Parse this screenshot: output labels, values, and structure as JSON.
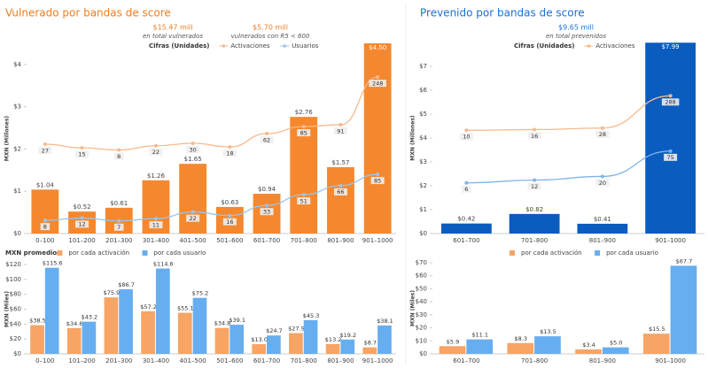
{
  "chart_data": [
    {
      "type": "bar",
      "title": "Vulnerado por bandas de score",
      "title_color": "#ef7d22",
      "annotations": [
        "$15.47 mill",
        "en total vulnerados",
        "$5.70 mill",
        "vulnerados con R5 < 600"
      ],
      "legend_title": "Cifras (Unidades)",
      "y_label": "MXN (Millones)",
      "categories": [
        "0–100",
        "101–200",
        "201–300",
        "301–400",
        "401–500",
        "501–600",
        "601–700",
        "701–800",
        "801–900",
        "901–1000"
      ],
      "values": [
        1.04,
        0.52,
        0.61,
        1.26,
        1.65,
        0.63,
        0.94,
        2.76,
        1.57,
        4.5
      ],
      "value_labels": [
        "$1.04",
        "$0.52",
        "$0.61",
        "$1.26",
        "$1.65",
        "$0.63",
        "$0.94",
        "$2.76",
        "$1.57",
        "$4.50"
      ],
      "color": "#f5882e",
      "ylim": [
        0,
        4.5
      ],
      "yticks": [
        {
          "value": 0,
          "label": "$0"
        },
        {
          "value": 1,
          "label": "$1"
        },
        {
          "value": 2,
          "label": "$2"
        },
        {
          "value": 3,
          "label": "$3"
        },
        {
          "value": 4,
          "label": "$4"
        }
      ],
      "series": [
        {
          "name": "Activaciones",
          "color": "#f7b98c",
          "values": [
            27,
            15,
            8,
            22,
            30,
            18,
            62,
            85,
            91,
            248
          ],
          "axis": "y2"
        },
        {
          "name": "Usuarios",
          "color": "#9cc4ea",
          "values": [
            8,
            12,
            7,
            11,
            22,
            16,
            33,
            51,
            66,
            85
          ],
          "axis": "y3"
        }
      ],
      "y2lim": [
        -267,
        359
      ],
      "y3lim": [
        -14,
        304
      ]
    },
    {
      "type": "bar",
      "title": "Prevenido por bandas de score",
      "title_color": "#1f6fd1",
      "annotations": [
        "$9.65 mill",
        "en total prevenidos"
      ],
      "legend_title": "Cifras (Unidades)",
      "y_label": "MXN (Millones)",
      "categories": [
        "601–700",
        "701–800",
        "801–900",
        "901–1000"
      ],
      "values": [
        0.42,
        0.82,
        0.41,
        7.99
      ],
      "value_labels": [
        "$0.42",
        "$0.82",
        "$0.41",
        "$7.99"
      ],
      "color": "#0b5cbf",
      "ylim": [
        0,
        8
      ],
      "yticks": [
        {
          "value": 0,
          "label": "$0"
        },
        {
          "value": 1,
          "label": "$1"
        },
        {
          "value": 2,
          "label": "$2"
        },
        {
          "value": 3,
          "label": "$3"
        },
        {
          "value": 4,
          "label": "$4"
        },
        {
          "value": 5,
          "label": "$5"
        },
        {
          "value": 6,
          "label": "$6"
        },
        {
          "value": 7,
          "label": "$7"
        }
      ],
      "series": [
        {
          "name": "Activaciones",
          "color": "#f7b98c",
          "values": [
            10,
            16,
            28,
            288
          ],
          "axis": "y2"
        },
        {
          "name": "Usuarios",
          "color": "#7fb3ea",
          "values": [
            6,
            12,
            20,
            75
          ],
          "axis": "y3"
        }
      ],
      "y2lim": [
        -822,
        718
      ],
      "y3lim": [
        -104,
        311
      ]
    },
    {
      "type": "grouped_bar",
      "legend_title": "MXN promedio",
      "y_label": "MXN (Miles)",
      "categories": [
        "0–100",
        "101–200",
        "201–300",
        "301–400",
        "401–500",
        "501–600",
        "601–700",
        "701–800",
        "801–900",
        "901–1000"
      ],
      "ylim": [
        0,
        120
      ],
      "yticks": [
        {
          "value": 0,
          "label": "$0"
        },
        {
          "value": 20,
          "label": "$20"
        },
        {
          "value": 40,
          "label": "$40"
        },
        {
          "value": 60,
          "label": "$60"
        },
        {
          "value": 80,
          "label": "$80"
        },
        {
          "value": 100,
          "label": "$100"
        },
        {
          "value": 120,
          "label": "$120"
        }
      ],
      "series": [
        {
          "name": "por cada activación",
          "color": "#f7a464",
          "values": [
            38.5,
            34.6,
            75.9,
            57.2,
            55.1,
            34.8,
            13.0,
            27.9,
            13.2,
            8.7
          ],
          "value_labels": [
            "$38.5",
            "$34.6",
            "$75.9",
            "$57.2",
            "$55.1",
            "$34.8",
            "$13.0",
            "$27.9",
            "$13.2",
            "$8.7"
          ]
        },
        {
          "name": "por cada usuario",
          "color": "#66aef0",
          "values": [
            115.6,
            43.2,
            86.7,
            114.6,
            75.2,
            39.1,
            24.7,
            45.3,
            19.2,
            38.1
          ],
          "value_labels": [
            "$115.6",
            "$43.2",
            "$86.7",
            "$114.6",
            "$75.2",
            "$39.1",
            "$24.7",
            "$45.3",
            "$19.2",
            "$38.1"
          ]
        }
      ]
    },
    {
      "type": "grouped_bar",
      "y_label": "MXN (Miles)",
      "categories": [
        "601–700",
        "701–800",
        "801–900",
        "901–1000"
      ],
      "ylim": [
        0,
        70
      ],
      "yticks": [
        {
          "value": 0,
          "label": "$0"
        },
        {
          "value": 10,
          "label": "$10"
        },
        {
          "value": 20,
          "label": "$20"
        },
        {
          "value": 30,
          "label": "$30"
        },
        {
          "value": 40,
          "label": "$40"
        },
        {
          "value": 50,
          "label": "$50"
        },
        {
          "value": 60,
          "label": "$60"
        },
        {
          "value": 70,
          "label": "$70"
        }
      ],
      "series": [
        {
          "name": "por cada activación",
          "color": "#f7a464",
          "values": [
            5.9,
            8.3,
            3.4,
            15.5
          ],
          "value_labels": [
            "$5.9",
            "$8.3",
            "$3.4",
            "$15.5"
          ]
        },
        {
          "name": "por cada usuario",
          "color": "#66aef0",
          "values": [
            11.1,
            13.5,
            5.0,
            67.7
          ],
          "value_labels": [
            "$11.1",
            "$13.5",
            "$5.0",
            "$67.7"
          ]
        }
      ]
    }
  ]
}
